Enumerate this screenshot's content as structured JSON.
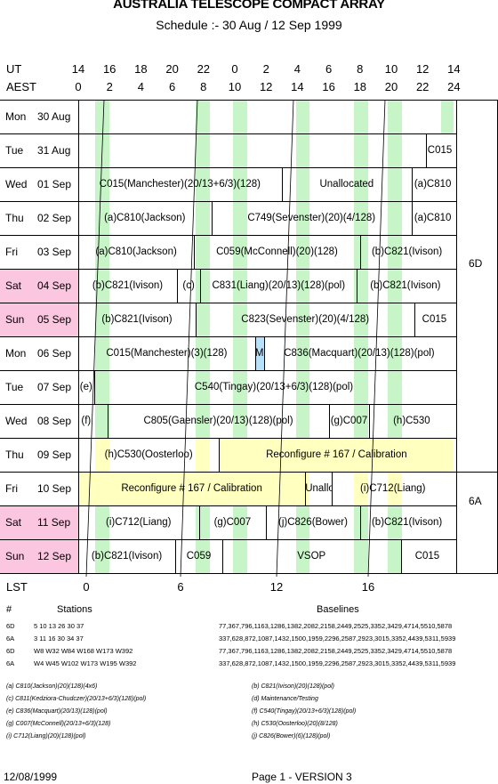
{
  "title": "AUSTRALIA TELESCOPE COMPACT ARRAY",
  "subtitle": "Schedule :- 30 Aug / 12 Sep 1999",
  "axes": {
    "ut_label": "UT",
    "aest_label": "AEST",
    "lst_label": "LST",
    "ut_ticks": [
      "14",
      "16",
      "18",
      "20",
      "22",
      "0",
      "2",
      "4",
      "6",
      "8",
      "10",
      "12",
      "14"
    ],
    "aest_ticks": [
      "0",
      "2",
      "4",
      "6",
      "8",
      "10",
      "12",
      "14",
      "16",
      "18",
      "20",
      "22",
      "24"
    ],
    "lst_ticks": [
      "0",
      "6",
      "12",
      "16"
    ]
  },
  "days": [
    {
      "dow": "Mon",
      "date": "30 Aug",
      "weekend": false,
      "segs": []
    },
    {
      "dow": "Tue",
      "date": "31 Aug",
      "weekend": false,
      "segs": [
        {
          "label": "C015"
        }
      ]
    },
    {
      "dow": "Wed",
      "date": "01 Sep",
      "weekend": false,
      "segs": [
        {
          "label": "C015(Manchester)(20/13+6/3)(128)"
        },
        {
          "label": "Unallocated"
        },
        {
          "label": "(a)C810"
        }
      ]
    },
    {
      "dow": "Thu",
      "date": "02 Sep",
      "weekend": false,
      "segs": [
        {
          "label": "(a)C810(Jackson)"
        },
        {
          "label": "C749(Sevenster)(20)(4/128)"
        },
        {
          "label": "(a)C810"
        }
      ]
    },
    {
      "dow": "Fri",
      "date": "03 Sep",
      "weekend": false,
      "segs": [
        {
          "label": "(a)C810(Jackson)"
        },
        {
          "label": "C059(McConnell)(20)(128)"
        },
        {
          "label": "(b)C821(Ivison)"
        }
      ]
    },
    {
      "dow": "Sat",
      "date": "04 Sep",
      "weekend": true,
      "segs": [
        {
          "label": "(b)C821(Ivison)"
        },
        {
          "label": "(c)"
        },
        {
          "label": "C831(Liang)(20/13)(128)(pol)"
        },
        {
          "label": "(b)C821(Ivison)"
        }
      ]
    },
    {
      "dow": "Sun",
      "date": "05 Sep",
      "weekend": true,
      "segs": [
        {
          "label": "(b)C821(Ivison)"
        },
        {
          "label": "C823(Sevenster)(20)(4/128)"
        },
        {
          "label": "C015"
        }
      ]
    },
    {
      "dow": "Mon",
      "date": "06 Sep",
      "weekend": false,
      "segs": [
        {
          "label": "C015(Manchester)(3)(128)"
        },
        {
          "label": "Maint"
        },
        {
          "label": "C836(Macquart)(20/13)(128)(pol)"
        }
      ]
    },
    {
      "dow": "Tue",
      "date": "07 Sep",
      "weekend": false,
      "segs": [
        {
          "label": "(e)"
        },
        {
          "label": "C540(Tingay)(20/13+6/3)(128)(pol)"
        }
      ]
    },
    {
      "dow": "Wed",
      "date": "08 Sep",
      "weekend": false,
      "segs": [
        {
          "label": "(f)"
        },
        {
          "label": "C805(Gaensler)(20/13)(128)(pol)"
        },
        {
          "label": "(g)C007"
        },
        {
          "label": "(h)C530"
        }
      ]
    },
    {
      "dow": "Thu",
      "date": "09 Sep",
      "weekend": false,
      "segs": [
        {
          "label": "(h)C530(Oosterloo)"
        },
        {
          "label": "Reconfigure # 167 / Calibration"
        }
      ]
    },
    {
      "dow": "Fri",
      "date": "10 Sep",
      "weekend": false,
      "segs": [
        {
          "label": "Reconfigure # 167 / Calibration"
        },
        {
          "label": "Unalloc."
        },
        {
          "label": "(i)C712(Liang)"
        }
      ]
    },
    {
      "dow": "Sat",
      "date": "11 Sep",
      "weekend": true,
      "segs": [
        {
          "label": "(i)C712(Liang)"
        },
        {
          "label": "(g)C007"
        },
        {
          "label": "(j)C826(Bower)"
        },
        {
          "label": "(b)C821(Ivison)"
        }
      ]
    },
    {
      "dow": "Sun",
      "date": "12 Sep",
      "weekend": true,
      "segs": [
        {
          "label": "(b)C821(Ivison)"
        },
        {
          "label": "C059"
        },
        {
          "label": "VSOP"
        },
        {
          "label": "C015"
        }
      ]
    }
  ],
  "configs": {
    "first": "6D",
    "second": "6A"
  },
  "stations": {
    "hash_label": "#",
    "stations_label": "Stations",
    "baselines_label": "Baselines",
    "rows": [
      {
        "cfg": "6D",
        "stations": "5 10 13 26 30 37",
        "baselines": "77,367,796,1163,1286,1382,2082,2158,2449,2525,3352,3429,4714,5510,5878"
      },
      {
        "cfg": "6A",
        "stations": "3 11 16 30 34 37",
        "baselines": "337,628,872,1087,1432,1500,1959,2296,2587,2923,3015,3352,4439,5311,5939"
      },
      {
        "cfg": "6D",
        "stations": "W8 W32 W84 W168 W173 W392",
        "baselines": "77,367,796,1163,1286,1382,2082,2158,2449,2525,3352,3429,4714,5510,5878"
      },
      {
        "cfg": "6A",
        "stations": "W4 W45 W102 W173 W195 W392",
        "baselines": "337,628,872,1087,1432,1500,1959,2296,2587,2923,3015,3352,4439,5311,5939"
      }
    ]
  },
  "notes": [
    [
      "(a) C810(Jackson)(20)(128)(4x6)",
      "(b) C821(Ivison)(20)(128)(pol)"
    ],
    [
      "(c) C811(Kedziora-Chudczer)(20/13+6/3)(128)(pol)",
      "(d) Maintenance/Testing"
    ],
    [
      "(e) C836(Macquart)(20/13)(128)(pol)",
      "(f) C540(Tingay)(20/13+6/3)(128)(pol)"
    ],
    [
      "(g) C007(McConnell)(20/13+6/3)(128)",
      "(h) C530(Oosterloo)(20)(8/128)"
    ],
    [
      "(i) C712(Liang)(20)(128)(pol)",
      "(j) C826(Bower)(6)(128)(pol)"
    ]
  ],
  "footer": {
    "date": "12/08/1999",
    "page": "Page 1 - VERSION 3"
  },
  "colors": {
    "green": "#c8f5c8",
    "yellow": "#ffffc0",
    "pink": "#fbc6e0",
    "blue": "#b8e0f8"
  }
}
